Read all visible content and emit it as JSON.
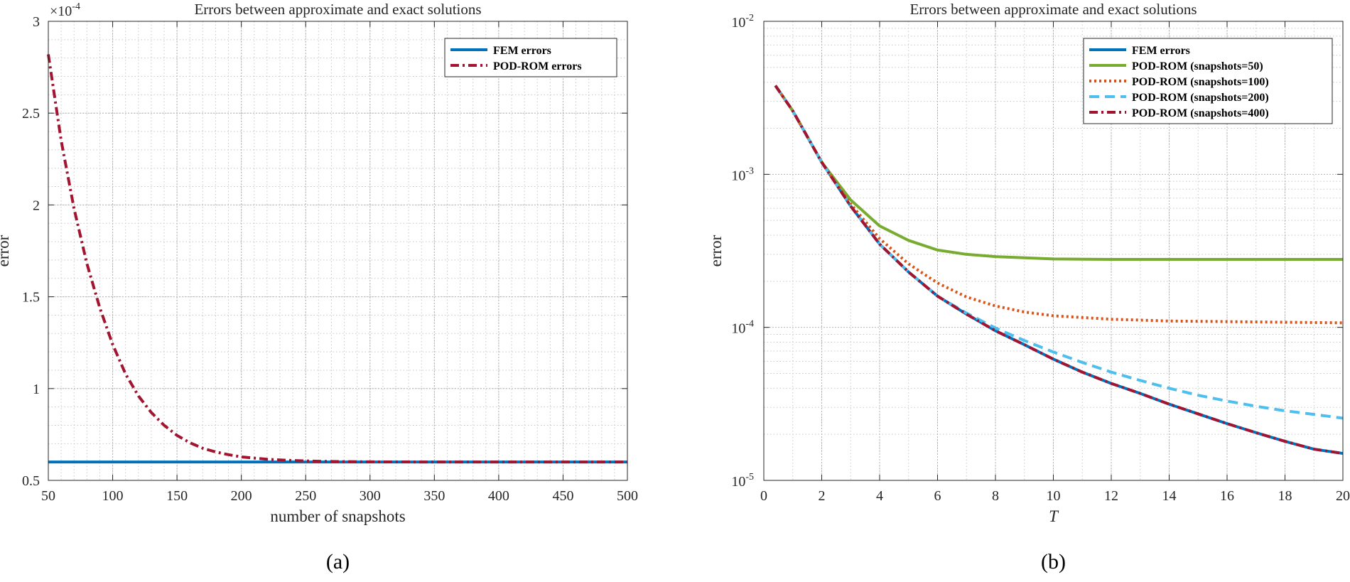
{
  "colors": {
    "fem": "#0072BD",
    "pod_red": "#A2142F",
    "pod_green": "#77AC30",
    "pod_orange": "#D95319",
    "pod_cyan": "#4DBEEE",
    "grid": "#c8c8c8",
    "axis": "#262626"
  },
  "chart_data": [
    {
      "type": "line",
      "panel_label": "(a)",
      "title": "Errors between approximate and exact solutions",
      "xlabel": "number of snapshots",
      "ylabel": "error",
      "y_exponent_label": "×10",
      "y_exponent_power": "-4",
      "xlim": [
        50,
        500
      ],
      "ylim": [
        0.5,
        3
      ],
      "xticks": [
        50,
        100,
        150,
        200,
        250,
        300,
        350,
        400,
        450,
        500
      ],
      "xtick_labels": [
        "50",
        "100",
        "150",
        "200",
        "250",
        "300",
        "350",
        "400",
        "450",
        "500"
      ],
      "yticks": [
        0.5,
        1,
        1.5,
        2,
        2.5,
        3
      ],
      "ytick_labels": [
        "0.5",
        "1",
        "1.5",
        "2",
        "2.5",
        "3"
      ],
      "grid": true,
      "legend_position": "top-right",
      "series": [
        {
          "name": "FEM errors",
          "color_key": "fem",
          "style": "solid",
          "x": [
            50,
            100,
            150,
            200,
            250,
            300,
            350,
            400,
            450,
            500
          ],
          "y": [
            0.6,
            0.6,
            0.6,
            0.6,
            0.6,
            0.6,
            0.6,
            0.6,
            0.6,
            0.6
          ]
        },
        {
          "name": "POD-ROM errors",
          "color_key": "pod_red",
          "style": "dashdot",
          "x": [
            50,
            60,
            70,
            80,
            90,
            100,
            110,
            120,
            130,
            140,
            150,
            160,
            170,
            180,
            190,
            200,
            220,
            240,
            260,
            280,
            300,
            350,
            400,
            450,
            500
          ],
          "y": [
            2.82,
            2.35,
            1.98,
            1.68,
            1.44,
            1.24,
            1.08,
            0.96,
            0.87,
            0.8,
            0.745,
            0.705,
            0.675,
            0.655,
            0.64,
            0.628,
            0.615,
            0.608,
            0.604,
            0.602,
            0.601,
            0.6,
            0.6,
            0.6,
            0.6
          ]
        }
      ]
    },
    {
      "type": "line",
      "panel_label": "(b)",
      "title": "Errors between approximate and exact solutions",
      "xlabel": "T",
      "ylabel": "error",
      "y_scale": "log",
      "xlim": [
        0,
        20
      ],
      "ylim": [
        1e-05,
        0.01
      ],
      "xticks": [
        0,
        2,
        4,
        6,
        8,
        10,
        12,
        14,
        16,
        18,
        20
      ],
      "xtick_labels": [
        "0",
        "2",
        "4",
        "6",
        "8",
        "10",
        "12",
        "14",
        "16",
        "18",
        "20"
      ],
      "yticks": [
        1e-05,
        0.0001,
        0.001,
        0.01
      ],
      "ytick_bases": [
        "10",
        "10",
        "10",
        "10"
      ],
      "ytick_powers": [
        "-5",
        "-4",
        "-3",
        "-2"
      ],
      "grid": true,
      "legend_position": "top-right",
      "series": [
        {
          "name": "FEM errors",
          "color_key": "fem",
          "style": "solid",
          "x": [
            0.4,
            1,
            2,
            3,
            4,
            5,
            6,
            7,
            8,
            9,
            10,
            11,
            12,
            13,
            14,
            15,
            16,
            17,
            18,
            19,
            20
          ],
          "y": [
            0.0038,
            0.0026,
            0.0012,
            0.00062,
            0.00035,
            0.00023,
            0.00016,
            0.000122,
            9.5e-05,
            7.7e-05,
            6.2e-05,
            5.1e-05,
            4.3e-05,
            3.7e-05,
            3.15e-05,
            2.72e-05,
            2.35e-05,
            2.05e-05,
            1.8e-05,
            1.6e-05,
            1.5e-05
          ]
        },
        {
          "name": "POD-ROM (snapshots=50)",
          "color_key": "pod_green",
          "style": "solid",
          "x": [
            0.4,
            1,
            2,
            3,
            4,
            5,
            6,
            7,
            8,
            9,
            10,
            12,
            14,
            16,
            18,
            20
          ],
          "y": [
            0.0038,
            0.0026,
            0.0012,
            0.00068,
            0.00046,
            0.00037,
            0.00032,
            0.0003,
            0.00029,
            0.000285,
            0.00028,
            0.000278,
            0.000278,
            0.000278,
            0.000278,
            0.000278
          ]
        },
        {
          "name": "POD-ROM (snapshots=100)",
          "color_key": "pod_orange",
          "style": "dotted",
          "x": [
            0.4,
            1,
            2,
            3,
            4,
            5,
            6,
            7,
            8,
            9,
            10,
            12,
            14,
            16,
            18,
            20
          ],
          "y": [
            0.0038,
            0.0026,
            0.0012,
            0.00064,
            0.00038,
            0.00026,
            0.000195,
            0.000158,
            0.000138,
            0.000126,
            0.000119,
            0.000113,
            0.00011,
            0.000109,
            0.000108,
            0.000107
          ]
        },
        {
          "name": "POD-ROM (snapshots=200)",
          "color_key": "pod_cyan",
          "style": "dashed",
          "x": [
            0.4,
            1,
            2,
            3,
            4,
            5,
            6,
            7,
            8,
            9,
            10,
            11,
            12,
            13,
            14,
            15,
            16,
            17,
            18,
            19,
            20
          ],
          "y": [
            0.0038,
            0.0026,
            0.0012,
            0.00062,
            0.00035,
            0.00023,
            0.00016,
            0.000124,
            9.9e-05,
            8.2e-05,
            6.9e-05,
            5.9e-05,
            5.1e-05,
            4.5e-05,
            4e-05,
            3.6e-05,
            3.3e-05,
            3.05e-05,
            2.85e-05,
            2.7e-05,
            2.55e-05
          ]
        },
        {
          "name": "POD-ROM (snapshots=400)",
          "color_key": "pod_red",
          "style": "dashdot",
          "x": [
            0.4,
            1,
            2,
            3,
            4,
            5,
            6,
            7,
            8,
            9,
            10,
            11,
            12,
            13,
            14,
            15,
            16,
            17,
            18,
            19,
            20
          ],
          "y": [
            0.0038,
            0.0026,
            0.0012,
            0.00062,
            0.00035,
            0.00023,
            0.00016,
            0.000122,
            9.5e-05,
            7.7e-05,
            6.2e-05,
            5.1e-05,
            4.3e-05,
            3.7e-05,
            3.15e-05,
            2.72e-05,
            2.35e-05,
            2.05e-05,
            1.8e-05,
            1.6e-05,
            1.5e-05
          ]
        }
      ]
    }
  ]
}
